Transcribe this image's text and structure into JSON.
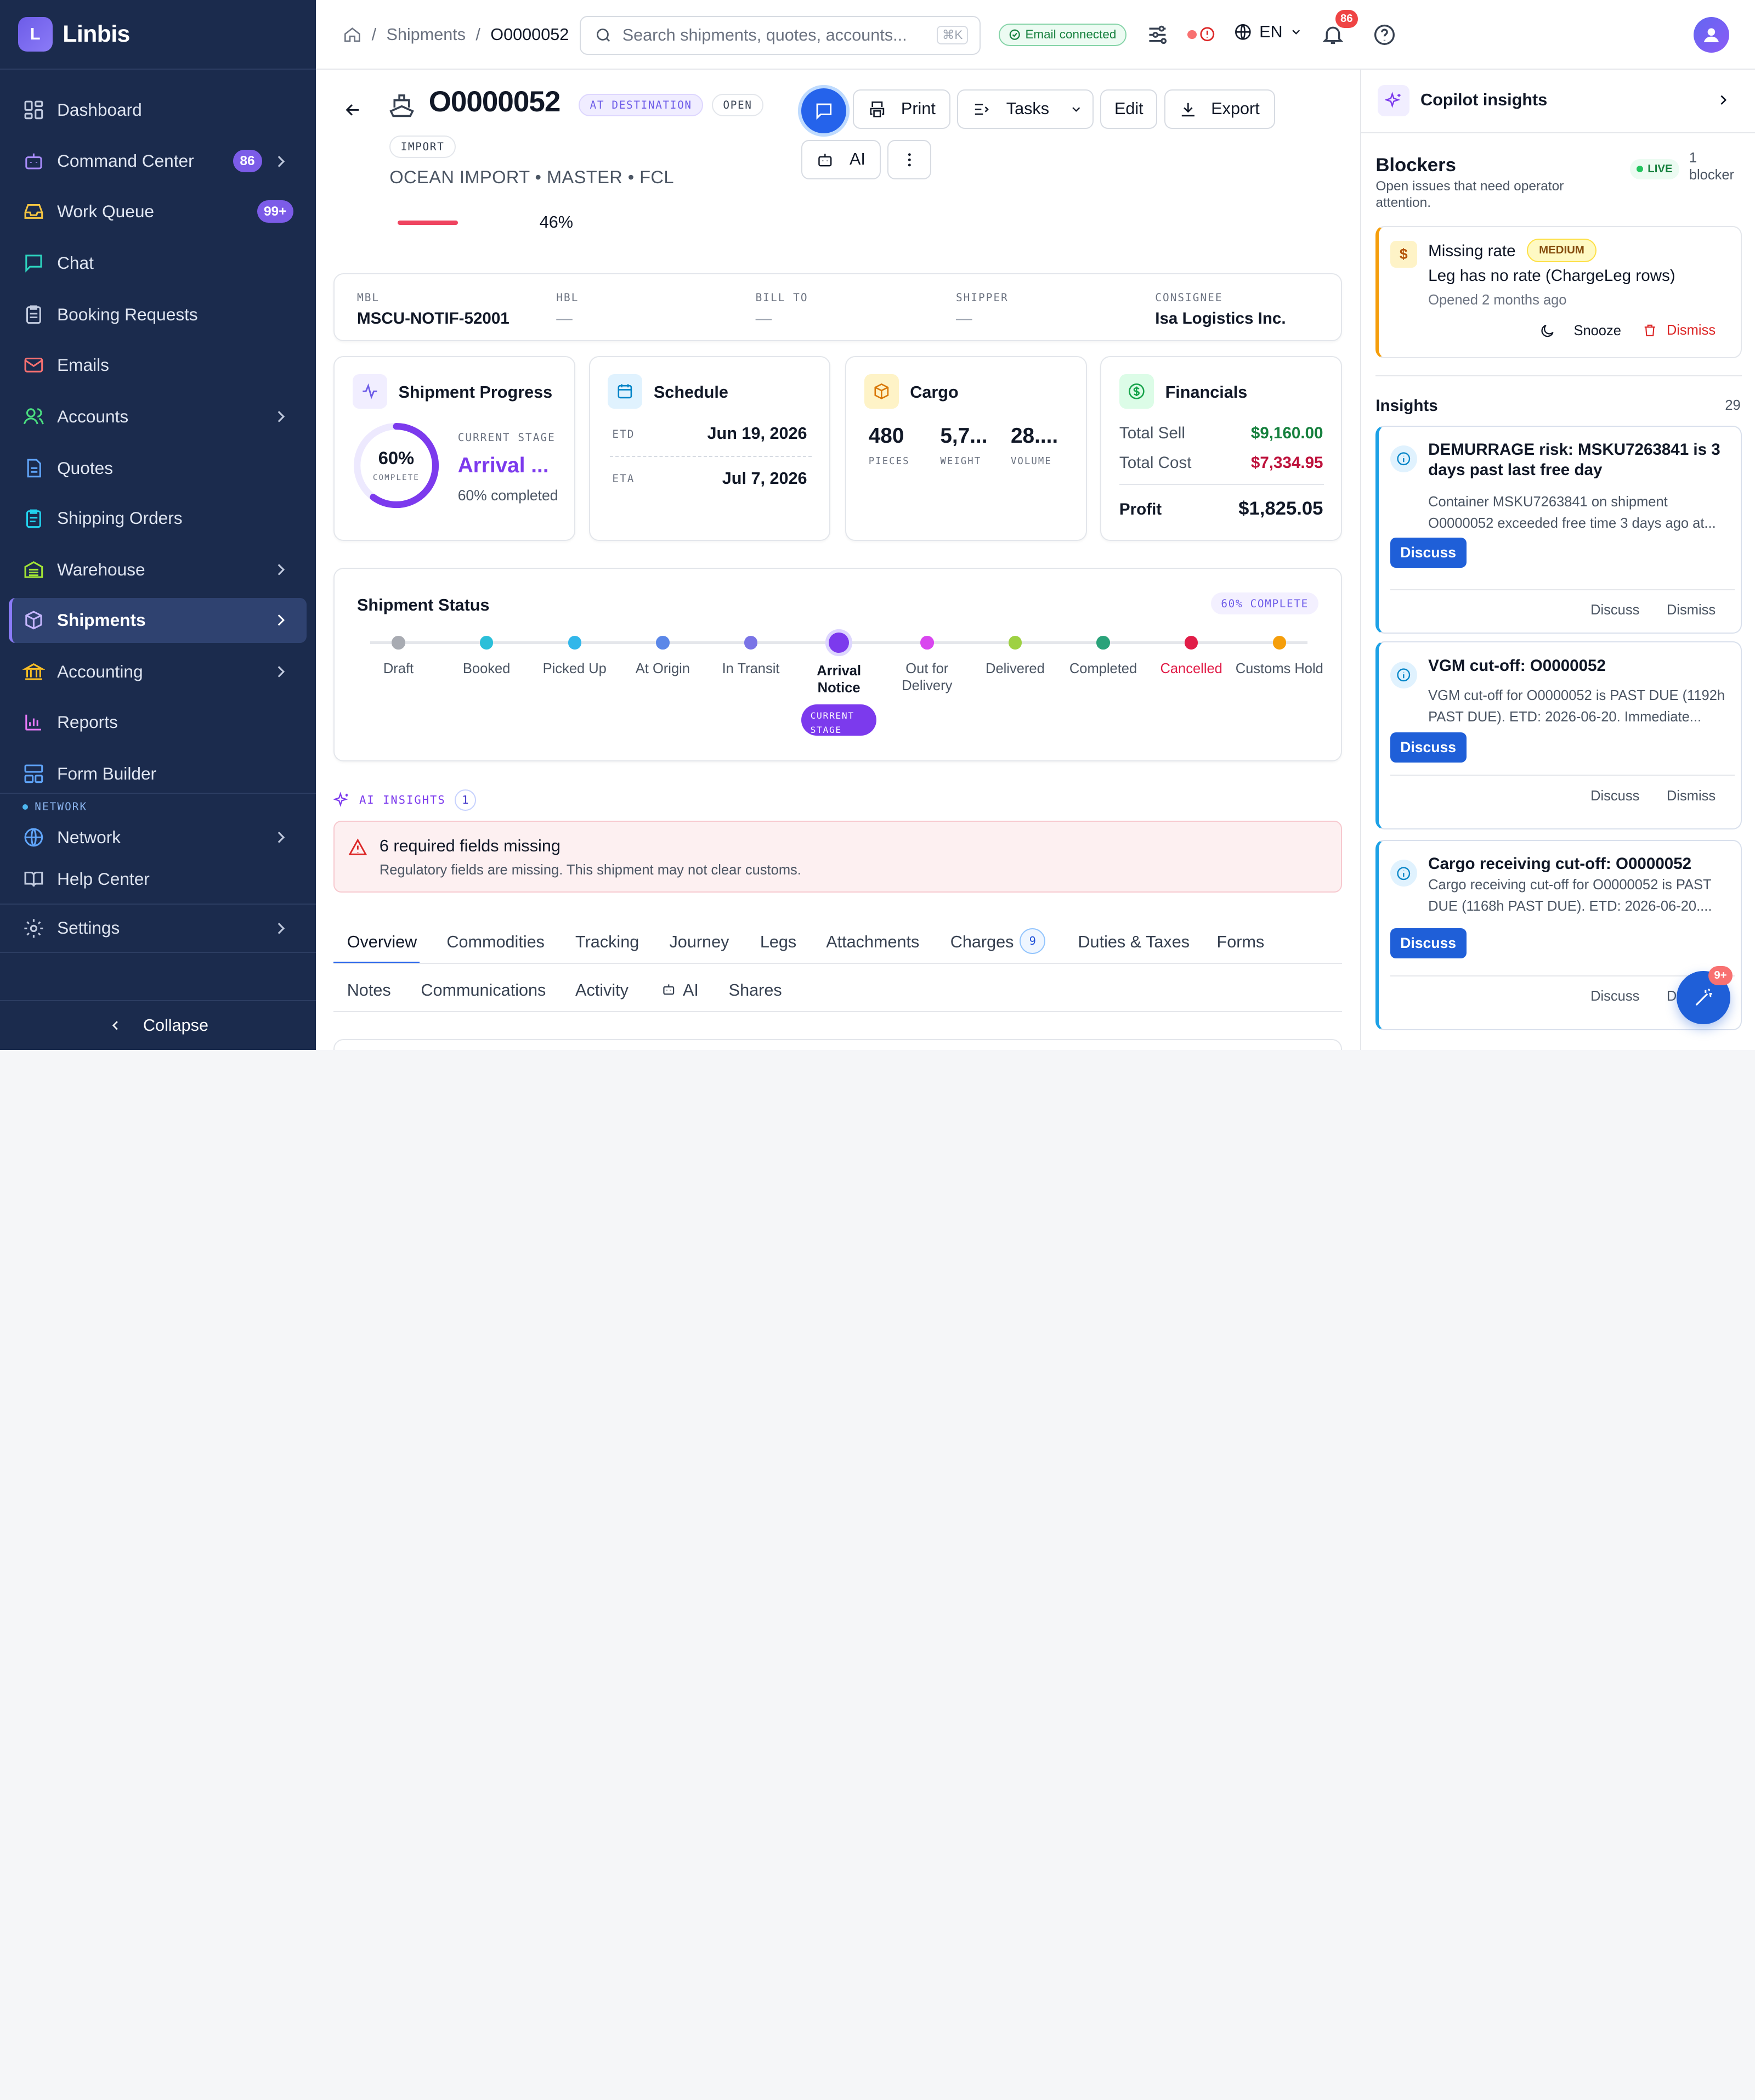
{
  "app": {
    "logo_letter": "L",
    "name": "Linbis"
  },
  "sidebar": {
    "items": [
      {
        "label": "Dashboard",
        "icon": "dashboard-icon"
      },
      {
        "label": "Command Center",
        "badge": "86",
        "icon": "bot-icon"
      },
      {
        "label": "Work Queue",
        "badge": "99+",
        "icon": "inbox-icon"
      },
      {
        "label": "Chat",
        "icon": "chat-icon"
      },
      {
        "label": "Booking Requests",
        "icon": "clipboard-icon"
      },
      {
        "label": "Emails",
        "icon": "mail-icon"
      },
      {
        "label": "Accounts",
        "icon": "users-icon"
      },
      {
        "label": "Quotes",
        "icon": "file-icon"
      },
      {
        "label": "Shipping Orders",
        "icon": "clipboard-list-icon"
      },
      {
        "label": "Warehouse",
        "icon": "warehouse-icon"
      },
      {
        "label": "Shipments",
        "icon": "box-icon"
      },
      {
        "label": "Accounting",
        "icon": "bank-icon"
      },
      {
        "label": "Reports",
        "icon": "bar-chart-icon"
      },
      {
        "label": "Form Builder",
        "icon": "layout-icon"
      }
    ],
    "section_network": "NETWORK",
    "network_items": [
      {
        "label": "Network"
      },
      {
        "label": "Help Center"
      }
    ],
    "settings": "Settings",
    "collapse": "Collapse"
  },
  "topbar": {
    "breadcrumb": [
      "Shipments",
      "O0000052"
    ],
    "search_placeholder": "Search shipments, quotes, accounts...",
    "search_kbd": "⌘K",
    "email_status": "Email connected",
    "language": "EN",
    "notifications": "86"
  },
  "shipment": {
    "id": "O0000052",
    "tags": [
      "AT DESTINATION",
      "OPEN",
      "IMPORT"
    ],
    "subtitle": "OCEAN IMPORT • MASTER • FCL",
    "progress_percent": 46,
    "progress_label": "46%",
    "actions": {
      "print": "Print",
      "tasks": "Tasks",
      "edit": "Edit",
      "export": "Export",
      "ai": "AI"
    },
    "refs": [
      {
        "label": "MBL",
        "value": "MSCU-NOTIF-52001"
      },
      {
        "label": "HBL",
        "value": "—"
      },
      {
        "label": "BILL TO",
        "value": "—"
      },
      {
        "label": "SHIPPER",
        "value": "—"
      },
      {
        "label": "CONSIGNEE",
        "value": "Isa Logistics Inc."
      }
    ]
  },
  "progress_card": {
    "title": "Shipment Progress",
    "percent": 60,
    "percent_label": "60%",
    "complete": "COMPLETE",
    "stage_label": "CURRENT STAGE",
    "stage": "Arrival ...",
    "stage_sub": "60% completed"
  },
  "schedule_card": {
    "title": "Schedule",
    "etd_label": "ETD",
    "etd": "Jun 19, 2026",
    "eta_label": "ETA",
    "eta": "Jul 7, 2026"
  },
  "cargo_card": {
    "title": "Cargo",
    "pieces": "480",
    "pieces_label": "PIECES",
    "weight": "5,7...",
    "weight_label": "WEIGHT",
    "volume": "28....",
    "volume_label": "VOLUME"
  },
  "fin_card": {
    "title": "Financials",
    "sell_label": "Total Sell",
    "sell": "$9,160.00",
    "cost_label": "Total Cost",
    "cost": "$7,334.95",
    "profit_label": "Profit",
    "profit": "$1,825.05"
  },
  "status": {
    "title": "Shipment Status",
    "complete": "60% COMPLETE",
    "current_stage": "CURRENT STAGE",
    "stages": [
      {
        "label": "Draft",
        "color": "#a8abb2"
      },
      {
        "label": "Booked",
        "color": "#2bbfd9"
      },
      {
        "label": "Picked Up",
        "color": "#32b7ea"
      },
      {
        "label": "At Origin",
        "color": "#5b87e8"
      },
      {
        "label": "In Transit",
        "color": "#7a74e6"
      },
      {
        "label": "Arrival Notice",
        "color": "#7c3aed"
      },
      {
        "label": "Out for Delivery",
        "color": "#d946ef"
      },
      {
        "label": "Delivered",
        "color": "#9ed143"
      },
      {
        "label": "Completed",
        "color": "#2aa37a"
      },
      {
        "label": "Cancelled",
        "color": "#e11d48"
      },
      {
        "label": "Customs Hold",
        "color": "#f59e0b"
      }
    ]
  },
  "ai_insights": {
    "label": "AI INSIGHTS",
    "count": "1",
    "alert_title": "6 required fields missing",
    "alert_body": "Regulatory fields are missing. This shipment may not clear customs."
  },
  "tabs": {
    "row1": [
      "Overview",
      "Commodities",
      "Tracking",
      "Journey",
      "Legs",
      "Attachments",
      "Charges",
      "Duties & Taxes",
      "Forms"
    ],
    "charges_count": "9",
    "row2": [
      "Notes",
      "Communications",
      "Activity",
      "AI",
      "Shares"
    ]
  },
  "copilot": {
    "title": "Copilot insights",
    "blockers_title": "Blockers",
    "blockers_sub": "Open issues that need operator attention.",
    "live": "LIVE",
    "blocker_count": "1",
    "blocker_word": "blocker",
    "blocker": {
      "title": "Missing rate",
      "severity": "MEDIUM",
      "body": "Leg has no rate (ChargeLeg rows)",
      "opened": "Opened 2 months ago",
      "snooze": "Snooze",
      "dismiss": "Dismiss"
    },
    "insights_title": "Insights",
    "insights_count": "29",
    "insights": [
      {
        "title": "DEMURRAGE risk: MSKU7263841 is 3 days past last free day",
        "body": "Container MSKU7263841 on shipment O0000052 exceeded free time 3 days ago at..."
      },
      {
        "title": "VGM cut-off: O0000052",
        "body": "VGM cut-off for O0000052 is PAST DUE (1192h PAST DUE). ETD: 2026-06-20. Immediate..."
      },
      {
        "title": "Cargo receiving cut-off: O0000052",
        "body": "Cargo receiving cut-off for O0000052 is PAST DUE (1168h PAST DUE). ETD: 2026-06-20...."
      }
    ],
    "discuss": "Discuss",
    "dismiss": "Dismiss",
    "fab_badge": "9+"
  }
}
